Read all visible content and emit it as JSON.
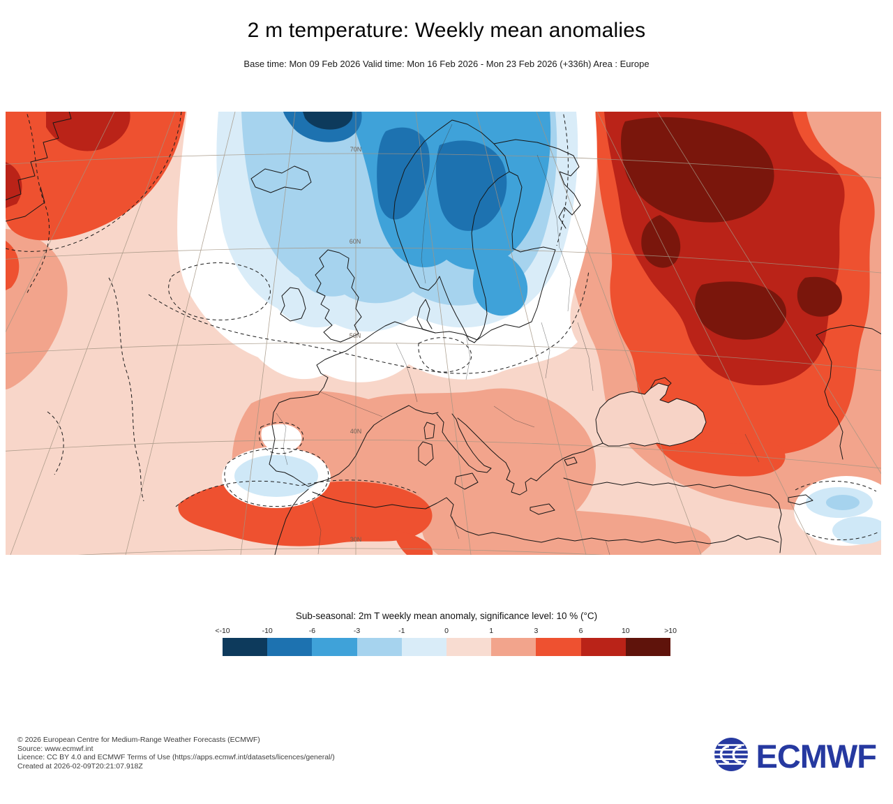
{
  "header": {
    "title": "2 m temperature: Weekly mean anomalies",
    "subtitle": "Base time: Mon 09 Feb 2026 Valid time: Mon 16 Feb 2026 - Mon 23 Feb 2026 (+336h) Area : Europe"
  },
  "map": {
    "latitude_labels": [
      "70N",
      "60N",
      "50N",
      "40N",
      "30N"
    ]
  },
  "legend": {
    "title": "Sub-seasonal: 2m T weekly mean anomaly, significance level: 10 % (°C)",
    "ticks": [
      "<-10",
      "-10",
      "-6",
      "-3",
      "-1",
      "0",
      "1",
      "3",
      "6",
      "10",
      ">10"
    ],
    "colors": [
      "#0d3a5c",
      "#1d72b0",
      "#3fa2d9",
      "#a6d3ee",
      "#d9ecf8",
      "#f8dcd1",
      "#f2a48c",
      "#ee5130",
      "#ba2318",
      "#5f130b"
    ]
  },
  "footer": {
    "copyright": "© 2026 European Centre for Medium-Range Weather Forecasts (ECMWF)",
    "source": "Source: www.ecmwf.int",
    "licence": "Licence: CC BY 4.0 and ECMWF Terms of Use (https://apps.ecmwf.int/datasets/licences/general/)",
    "created": "Created at 2026-02-09T20:21:07.918Z",
    "logo_text": "ECMWF",
    "logo_color": "#2639a0"
  }
}
